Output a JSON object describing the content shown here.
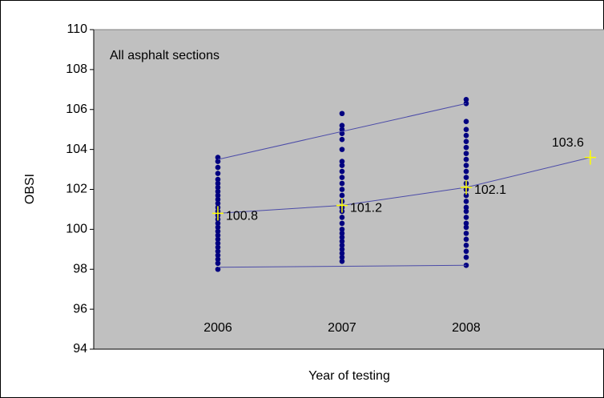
{
  "chart_data": {
    "type": "scatter",
    "title": "All asphalt sections",
    "y_label": "OBSI",
    "x_label": "Year of testing",
    "xlim": [
      2005,
      2009.11
    ],
    "xticks": [
      2006,
      2007,
      2008
    ],
    "ylim": [
      94,
      110
    ],
    "yticks": [
      94,
      96,
      98,
      100,
      102,
      104,
      106,
      108,
      110
    ],
    "plot_background": "#c0c0c0",
    "series": [
      {
        "mode": "markers",
        "marker": "dot",
        "color": "#000080",
        "x": [
          2006,
          2006,
          2006,
          2006,
          2006,
          2006,
          2006,
          2006,
          2006,
          2006,
          2006,
          2006,
          2006,
          2006,
          2006,
          2006,
          2006,
          2006,
          2006,
          2006,
          2006,
          2006,
          2006,
          2006,
          2006,
          2006,
          2006,
          2007,
          2007,
          2007,
          2007,
          2007,
          2007,
          2007,
          2007,
          2007,
          2007,
          2007,
          2007,
          2007,
          2007,
          2007,
          2007,
          2007,
          2007,
          2007,
          2007,
          2007,
          2007,
          2007,
          2007,
          2007,
          2007,
          2007,
          2008,
          2008,
          2008,
          2008,
          2008,
          2008,
          2008,
          2008,
          2008,
          2008,
          2008,
          2008,
          2008,
          2008,
          2008,
          2008,
          2008,
          2008,
          2008,
          2008,
          2008,
          2008,
          2008,
          2008,
          2008,
          2008,
          2008
        ],
        "values": [
          98.0,
          98.3,
          98.5,
          98.7,
          98.9,
          99.1,
          99.3,
          99.5,
          99.7,
          99.9,
          100.1,
          100.3,
          100.5,
          100.7,
          100.9,
          101.1,
          101.3,
          101.5,
          101.7,
          101.9,
          102.1,
          102.3,
          102.5,
          102.8,
          103.1,
          103.4,
          103.6,
          98.4,
          98.6,
          98.8,
          99.0,
          99.2,
          99.4,
          99.6,
          99.8,
          100.0,
          100.3,
          100.6,
          100.9,
          101.1,
          101.4,
          101.7,
          102.0,
          102.3,
          102.6,
          102.9,
          103.2,
          103.4,
          104.0,
          104.5,
          104.8,
          105.0,
          105.2,
          105.8,
          98.2,
          98.6,
          98.9,
          99.2,
          99.5,
          99.8,
          100.1,
          100.3,
          100.6,
          100.9,
          101.1,
          101.4,
          101.7,
          102.0,
          102.3,
          102.6,
          102.9,
          103.2,
          103.5,
          103.8,
          104.1,
          104.4,
          104.7,
          105.0,
          105.4,
          106.3,
          106.5
        ]
      },
      {
        "mode": "line",
        "color": "#4b4ba8",
        "x": [
          2006,
          2008
        ],
        "values": [
          103.5,
          106.3
        ]
      },
      {
        "mode": "line",
        "color": "#4b4ba8",
        "x": [
          2006,
          2008
        ],
        "values": [
          98.1,
          98.2
        ]
      },
      {
        "mode": "line+markers",
        "marker": "cross",
        "labels": true,
        "color": "#4b4ba8",
        "marker_color": "#ffff00",
        "x": [
          2006,
          2007,
          2008,
          2009
        ],
        "values": [
          100.8,
          101.2,
          102.1,
          103.6
        ]
      }
    ]
  }
}
